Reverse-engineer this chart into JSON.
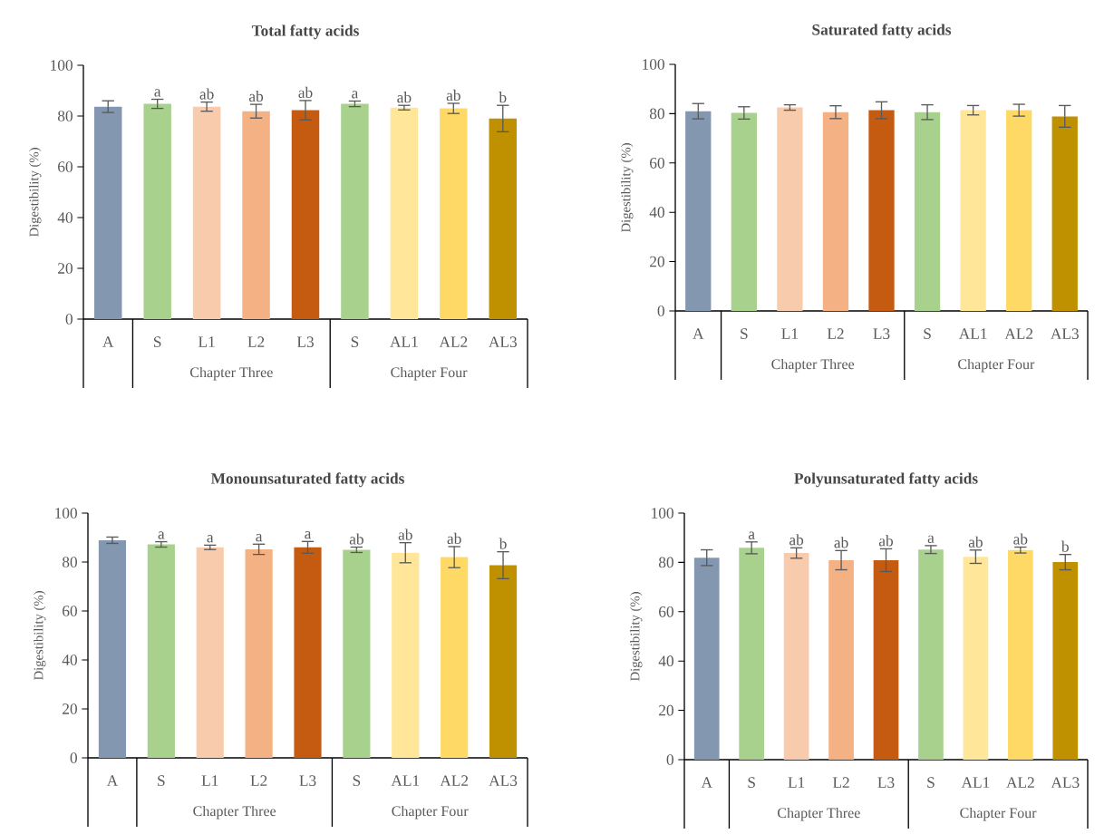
{
  "chart_data": [
    {
      "type": "bar",
      "title": "Total fatty acids",
      "ylabel": "Digestibility (%)",
      "categories": [
        "A",
        "S",
        "L1",
        "L2",
        "L3",
        "S",
        "AL1",
        "AL2",
        "AL3"
      ],
      "values": [
        83.7,
        84.8,
        83.7,
        81.9,
        82.3,
        84.8,
        83.3,
        83.0,
        79.0
      ],
      "errors": [
        2.3,
        1.8,
        1.8,
        2.7,
        3.8,
        1.1,
        0.9,
        2.0,
        5.2
      ],
      "value_labels": [
        null,
        "a",
        "ab",
        "ab",
        "ab",
        "a",
        "ab",
        "ab",
        "b"
      ],
      "colors": [
        "#8497b0",
        "#a9d18e",
        "#f8cbad",
        "#f4b183",
        "#c55a11",
        "#a9d18e",
        "#ffe699",
        "#ffd966",
        "#bf9000"
      ],
      "ylim": [
        0,
        100
      ],
      "yticks": [
        0,
        20,
        40,
        60,
        80,
        100
      ],
      "grid": false,
      "annotations": [
        "Chapter Three",
        "Chapter Four"
      ]
    },
    {
      "type": "bar",
      "title": "Saturated fatty acids",
      "ylabel": "Digestibility (%)",
      "categories": [
        "A",
        "S",
        "L1",
        "L2",
        "L3",
        "S",
        "AL1",
        "AL2",
        "AL3"
      ],
      "values": [
        81.0,
        80.3,
        82.5,
        80.6,
        81.4,
        80.6,
        81.4,
        81.4,
        78.9
      ],
      "errors": [
        3.1,
        2.5,
        1.1,
        2.6,
        3.4,
        3.0,
        1.9,
        2.4,
        4.4
      ],
      "colors": [
        "#8497b0",
        "#a9d18e",
        "#f8cbad",
        "#f4b183",
        "#c55a11",
        "#a9d18e",
        "#ffe699",
        "#ffd966",
        "#bf9000"
      ],
      "ylim": [
        0,
        100
      ],
      "yticks": [
        0,
        20,
        40,
        60,
        80,
        100
      ],
      "grid": false,
      "annotations": [
        "Chapter Three",
        "Chapter Four"
      ]
    },
    {
      "type": "bar",
      "title": "Monounsaturated fatty acids",
      "ylabel": "Digestibility (%)",
      "categories": [
        "A",
        "S",
        "L1",
        "L2",
        "L3",
        "S",
        "AL1",
        "AL2",
        "AL3"
      ],
      "values": [
        88.9,
        87.2,
        86.0,
        85.2,
        86.0,
        85.0,
        83.8,
        82.0,
        78.7
      ],
      "errors": [
        1.3,
        1.1,
        0.9,
        2.1,
        2.4,
        1.1,
        4.1,
        4.3,
        5.5
      ],
      "value_labels": [
        null,
        "a",
        "a",
        "a",
        "a",
        "ab",
        "ab",
        "ab",
        "b"
      ],
      "colors": [
        "#8497b0",
        "#a9d18e",
        "#f8cbad",
        "#f4b183",
        "#c55a11",
        "#a9d18e",
        "#ffe699",
        "#ffd966",
        "#bf9000"
      ],
      "ylim": [
        0,
        100
      ],
      "yticks": [
        0,
        20,
        40,
        60,
        80,
        100
      ],
      "grid": false,
      "annotations": [
        "Chapter Three",
        "Chapter Four"
      ]
    },
    {
      "type": "bar",
      "title": "Polyunsaturated fatty acids",
      "ylabel": "Digestibility (%)",
      "categories": [
        "A",
        "S",
        "L1",
        "L2",
        "L3",
        "S",
        "AL1",
        "AL2",
        "AL3"
      ],
      "values": [
        81.9,
        85.9,
        83.8,
        80.9,
        80.9,
        85.2,
        82.3,
        85.0,
        80.1
      ],
      "errors": [
        3.2,
        2.4,
        2.1,
        3.9,
        4.6,
        1.6,
        2.7,
        1.2,
        3.1
      ],
      "value_labels": [
        null,
        "a",
        "ab",
        "ab",
        "ab",
        "a",
        "ab",
        "ab",
        "b"
      ],
      "colors": [
        "#8497b0",
        "#a9d18e",
        "#f8cbad",
        "#f4b183",
        "#c55a11",
        "#a9d18e",
        "#ffe699",
        "#ffd966",
        "#bf9000"
      ],
      "ylim": [
        0,
        100
      ],
      "yticks": [
        0,
        20,
        40,
        60,
        80,
        100
      ],
      "grid": false,
      "annotations": [
        "Chapter Three",
        "Chapter Four"
      ]
    }
  ]
}
